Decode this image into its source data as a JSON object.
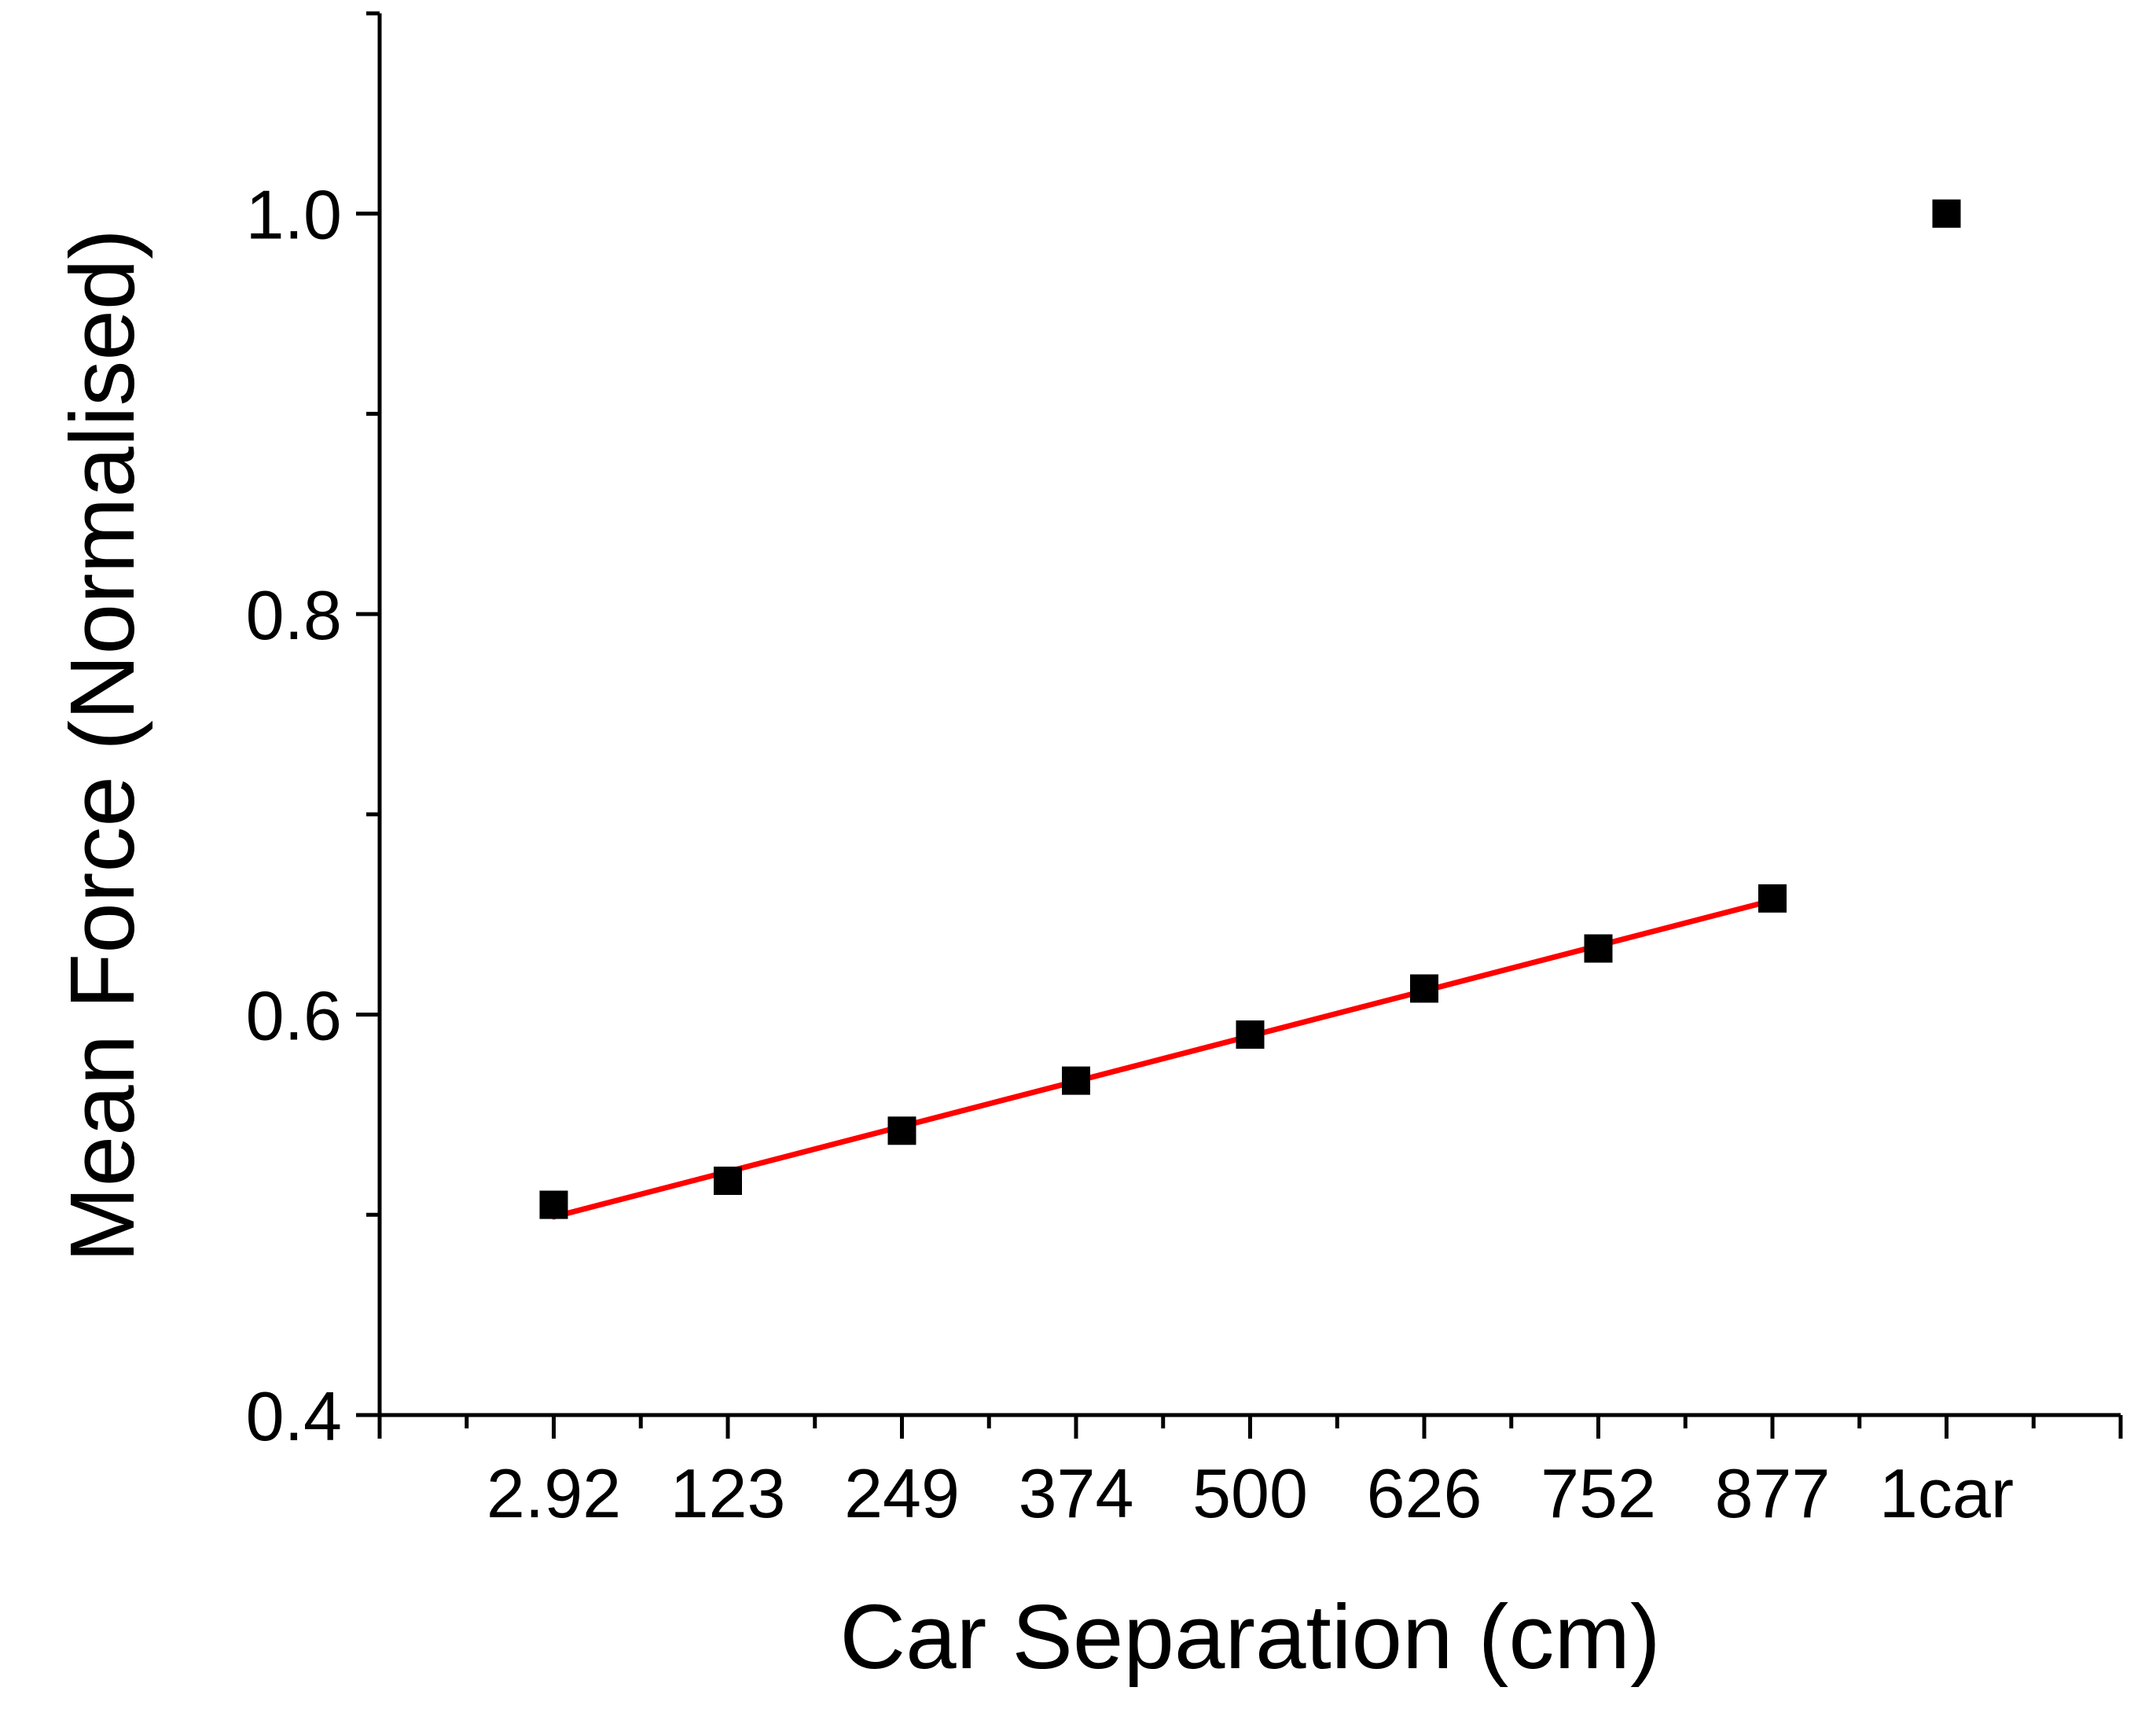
{
  "chart_data": {
    "type": "scatter",
    "title": "",
    "xlabel": "Car Separation (cm)",
    "ylabel": "Mean Force (Normalised)",
    "categories": [
      "2.92",
      "123",
      "249",
      "374",
      "500",
      "626",
      "752",
      "877",
      "1car"
    ],
    "x_axis_range_index": [
      -1,
      9
    ],
    "ylim": [
      0.4,
      1.1
    ],
    "y_ticks": [
      {
        "value": 0.4,
        "label": "0.4"
      },
      {
        "value": 0.6,
        "label": "0.6"
      },
      {
        "value": 0.8,
        "label": "0.8"
      },
      {
        "value": 1.0,
        "label": "1.0"
      }
    ],
    "y_minor_step": 0.1,
    "x_minor_ticks_between_categories": true,
    "series": [
      {
        "values": [
          0.505,
          0.517,
          0.542,
          0.567,
          0.59,
          0.613,
          0.633,
          0.658,
          1.0
        ],
        "marker": "square",
        "color": "#000000"
      }
    ],
    "fit_line": {
      "type": "linear",
      "color": "#ff0000",
      "from_category": "2.92",
      "to_category": "877",
      "start_value": 0.499,
      "end_value": 0.657
    },
    "grid": false,
    "legend": "none"
  }
}
